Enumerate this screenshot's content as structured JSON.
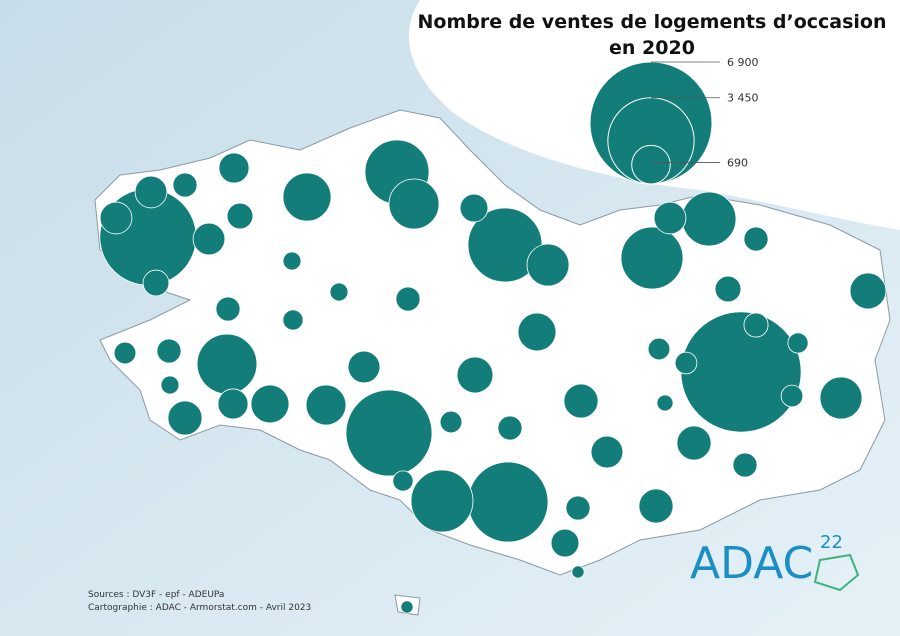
{
  "title": [
    "Nombre de ventes de logements d’occasion",
    "en 2020"
  ],
  "legend": {
    "items": [
      {
        "value": 6900,
        "label": "6 900"
      },
      {
        "value": 3450,
        "label": "3 450"
      },
      {
        "value": 690,
        "label": "690"
      }
    ]
  },
  "symbols": {
    "color": "#137d7a",
    "values": [
      4300,
      1900,
      1160,
      1070,
      2540,
      6700,
      3430,
      2970,
      1780,
      1660,
      1780,
      1350,
      470,
      470,
      270,
      420,
      310,
      470,
      310,
      150,
      270,
      190,
      150,
      270,
      360,
      820,
      670,
      470,
      270,
      310,
      600,
      270,
      190,
      220,
      220,
      220,
      270,
      150,
      540,
      420,
      670,
      740,
      470,
      600,
      220,
      270,
      540,
      120,
      470,
      540,
      220,
      820,
      270,
      540,
      270,
      190,
      360,
      70,
      70
    ]
  },
  "sources": [
    "Sources : DV3F - epf - ADEUPa",
    "Cartographie : ADAC - Armorstat.com - Avril 2023"
  ],
  "logo": {
    "name": "ADAC",
    "number": "22"
  }
}
